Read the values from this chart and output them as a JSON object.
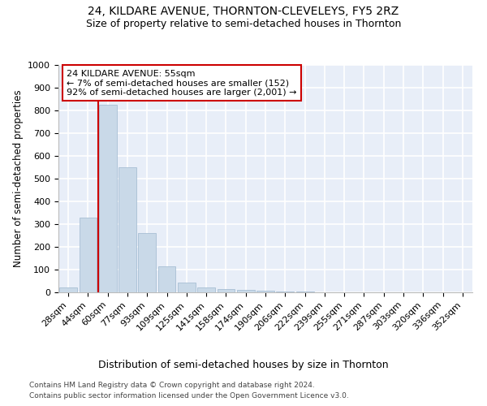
{
  "title": "24, KILDARE AVENUE, THORNTON-CLEVELEYS, FY5 2RZ",
  "subtitle": "Size of property relative to semi-detached houses in Thornton",
  "xlabel": "Distribution of semi-detached houses by size in Thornton",
  "ylabel": "Number of semi-detached properties",
  "categories": [
    "28sqm",
    "44sqm",
    "60sqm",
    "77sqm",
    "93sqm",
    "109sqm",
    "125sqm",
    "141sqm",
    "158sqm",
    "174sqm",
    "190sqm",
    "206sqm",
    "222sqm",
    "239sqm",
    "255sqm",
    "271sqm",
    "287sqm",
    "303sqm",
    "320sqm",
    "336sqm",
    "352sqm"
  ],
  "values": [
    20,
    330,
    825,
    550,
    260,
    115,
    43,
    20,
    13,
    10,
    7,
    4,
    2,
    1,
    1,
    0,
    0,
    0,
    0,
    0,
    0
  ],
  "bar_color": "#c9d9e8",
  "bar_edge_color": "#a8bfd4",
  "vline_color": "#cc0000",
  "vline_x": 1.5,
  "annotation_text": "24 KILDARE AVENUE: 55sqm\n← 7% of semi-detached houses are smaller (152)\n92% of semi-detached houses are larger (2,001) →",
  "annotation_box_color": "#ffffff",
  "annotation_box_edge_color": "#cc0000",
  "ylim": [
    0,
    1000
  ],
  "yticks": [
    0,
    100,
    200,
    300,
    400,
    500,
    600,
    700,
    800,
    900,
    1000
  ],
  "plot_background_color": "#e8eef8",
  "grid_color": "#ffffff",
  "footer_line1": "Contains HM Land Registry data © Crown copyright and database right 2024.",
  "footer_line2": "Contains public sector information licensed under the Open Government Licence v3.0.",
  "title_fontsize": 10,
  "subtitle_fontsize": 9,
  "tick_fontsize": 8,
  "ylabel_fontsize": 8.5,
  "xlabel_fontsize": 9,
  "footer_fontsize": 6.5,
  "annotation_fontsize": 8
}
